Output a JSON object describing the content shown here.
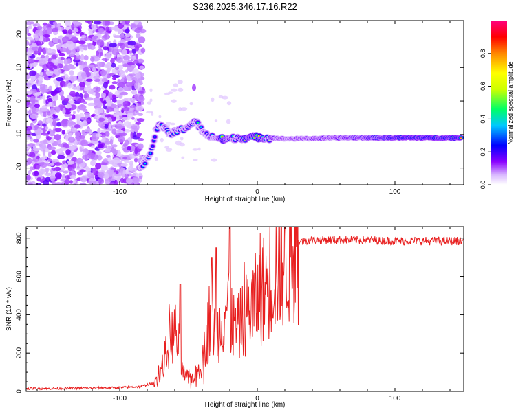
{
  "chart_data": [
    {
      "type": "heatmap",
      "title": "S236.2025.346.17.16.R22",
      "xlabel": "Height of straight line (km)",
      "ylabel": "Frequency (Hz)",
      "xlim": [
        -168,
        150
      ],
      "ylim": [
        -25,
        24
      ],
      "xticks": [
        -100,
        0,
        100
      ],
      "yticks": [
        20,
        10,
        0,
        -10,
        -20
      ],
      "xtick_labels": [
        "-100",
        "0",
        "100"
      ],
      "ytick_labels": [
        "20",
        "10",
        "0",
        "-10",
        "-20"
      ],
      "colorbar": {
        "label": "Normalized spectral amplitude",
        "range": [
          0.0,
          1.0
        ],
        "ticks": [
          0.0,
          0.2,
          0.4,
          0.6,
          0.8
        ],
        "tick_labels": [
          "0.0",
          "0.2",
          "0.4",
          "0.6",
          "0.8"
        ],
        "colors": [
          "#ffffff",
          "#d9b8ff",
          "#8a00ff",
          "#0000ff",
          "#00c8ff",
          "#00ff66",
          "#ccff00",
          "#ffff00",
          "#ff8800",
          "#ff0000",
          "#ff007f"
        ]
      },
      "noise_region": {
        "x": [
          -168,
          -83
        ],
        "y": [
          -25,
          24
        ]
      },
      "signal_trace": [
        {
          "x": -84,
          "y": -20,
          "amp": 0.3
        },
        {
          "x": -80,
          "y": -17,
          "amp": 0.35
        },
        {
          "x": -77,
          "y": -15,
          "amp": 0.3
        },
        {
          "x": -73,
          "y": -8,
          "amp": 0.4
        },
        {
          "x": -70,
          "y": -7,
          "amp": 0.3
        },
        {
          "x": -64,
          "y": -10,
          "amp": 0.4
        },
        {
          "x": -58,
          "y": -9,
          "amp": 0.45
        },
        {
          "x": -52,
          "y": -8,
          "amp": 0.5
        },
        {
          "x": -45,
          "y": -6,
          "amp": 0.45
        },
        {
          "x": -38,
          "y": -10,
          "amp": 0.3
        },
        {
          "x": -30,
          "y": -11,
          "amp": 0.5
        },
        {
          "x": -24,
          "y": -11.5,
          "amp": 0.9
        },
        {
          "x": -15,
          "y": -11,
          "amp": 0.4
        },
        {
          "x": -8,
          "y": -11,
          "amp": 0.85
        },
        {
          "x": 0,
          "y": -10.8,
          "amp": 0.9
        },
        {
          "x": 8,
          "y": -11,
          "amp": 0.55
        },
        {
          "x": 20,
          "y": -11.3,
          "amp": 0.45
        },
        {
          "x": 40,
          "y": -11.2,
          "amp": 0.5
        },
        {
          "x": 60,
          "y": -11,
          "amp": 0.55
        },
        {
          "x": 88,
          "y": -11,
          "amp": 0.7
        },
        {
          "x": 100,
          "y": -11,
          "amp": 0.92
        },
        {
          "x": 120,
          "y": -11,
          "amp": 0.95
        },
        {
          "x": 148,
          "y": -11,
          "amp": 0.95
        }
      ]
    },
    {
      "type": "line",
      "title": "",
      "xlabel": "Height of straight line (km)",
      "ylabel": "SNR (10 * v/v)",
      "xlim": [
        -168,
        150
      ],
      "ylim": [
        0,
        860
      ],
      "xticks": [
        -100,
        0,
        100
      ],
      "yticks": [
        0,
        200,
        400,
        600,
        800
      ],
      "xtick_labels": [
        "-100",
        "0",
        "100"
      ],
      "ytick_labels": [
        "0",
        "200",
        "400",
        "600",
        "800"
      ],
      "series": [
        {
          "name": "SNR",
          "color": "#e82020",
          "x": [
            -168,
            -150,
            -120,
            -100,
            -85,
            -75,
            -70,
            -66,
            -63,
            -60,
            -57,
            -54,
            -50,
            -45,
            -40,
            -36,
            -33,
            -30,
            -27,
            -24,
            -20,
            -17,
            -14,
            -10,
            -5,
            0,
            5,
            10,
            15,
            20,
            25,
            30,
            40,
            50,
            60,
            80,
            100,
            120,
            150
          ],
          "values": [
            15,
            15,
            18,
            20,
            25,
            45,
            110,
            200,
            280,
            320,
            230,
            90,
            65,
            85,
            150,
            320,
            380,
            300,
            340,
            420,
            470,
            330,
            330,
            380,
            440,
            480,
            540,
            600,
            660,
            700,
            740,
            780,
            790,
            790,
            790,
            790,
            785,
            785,
            785
          ]
        }
      ]
    }
  ]
}
